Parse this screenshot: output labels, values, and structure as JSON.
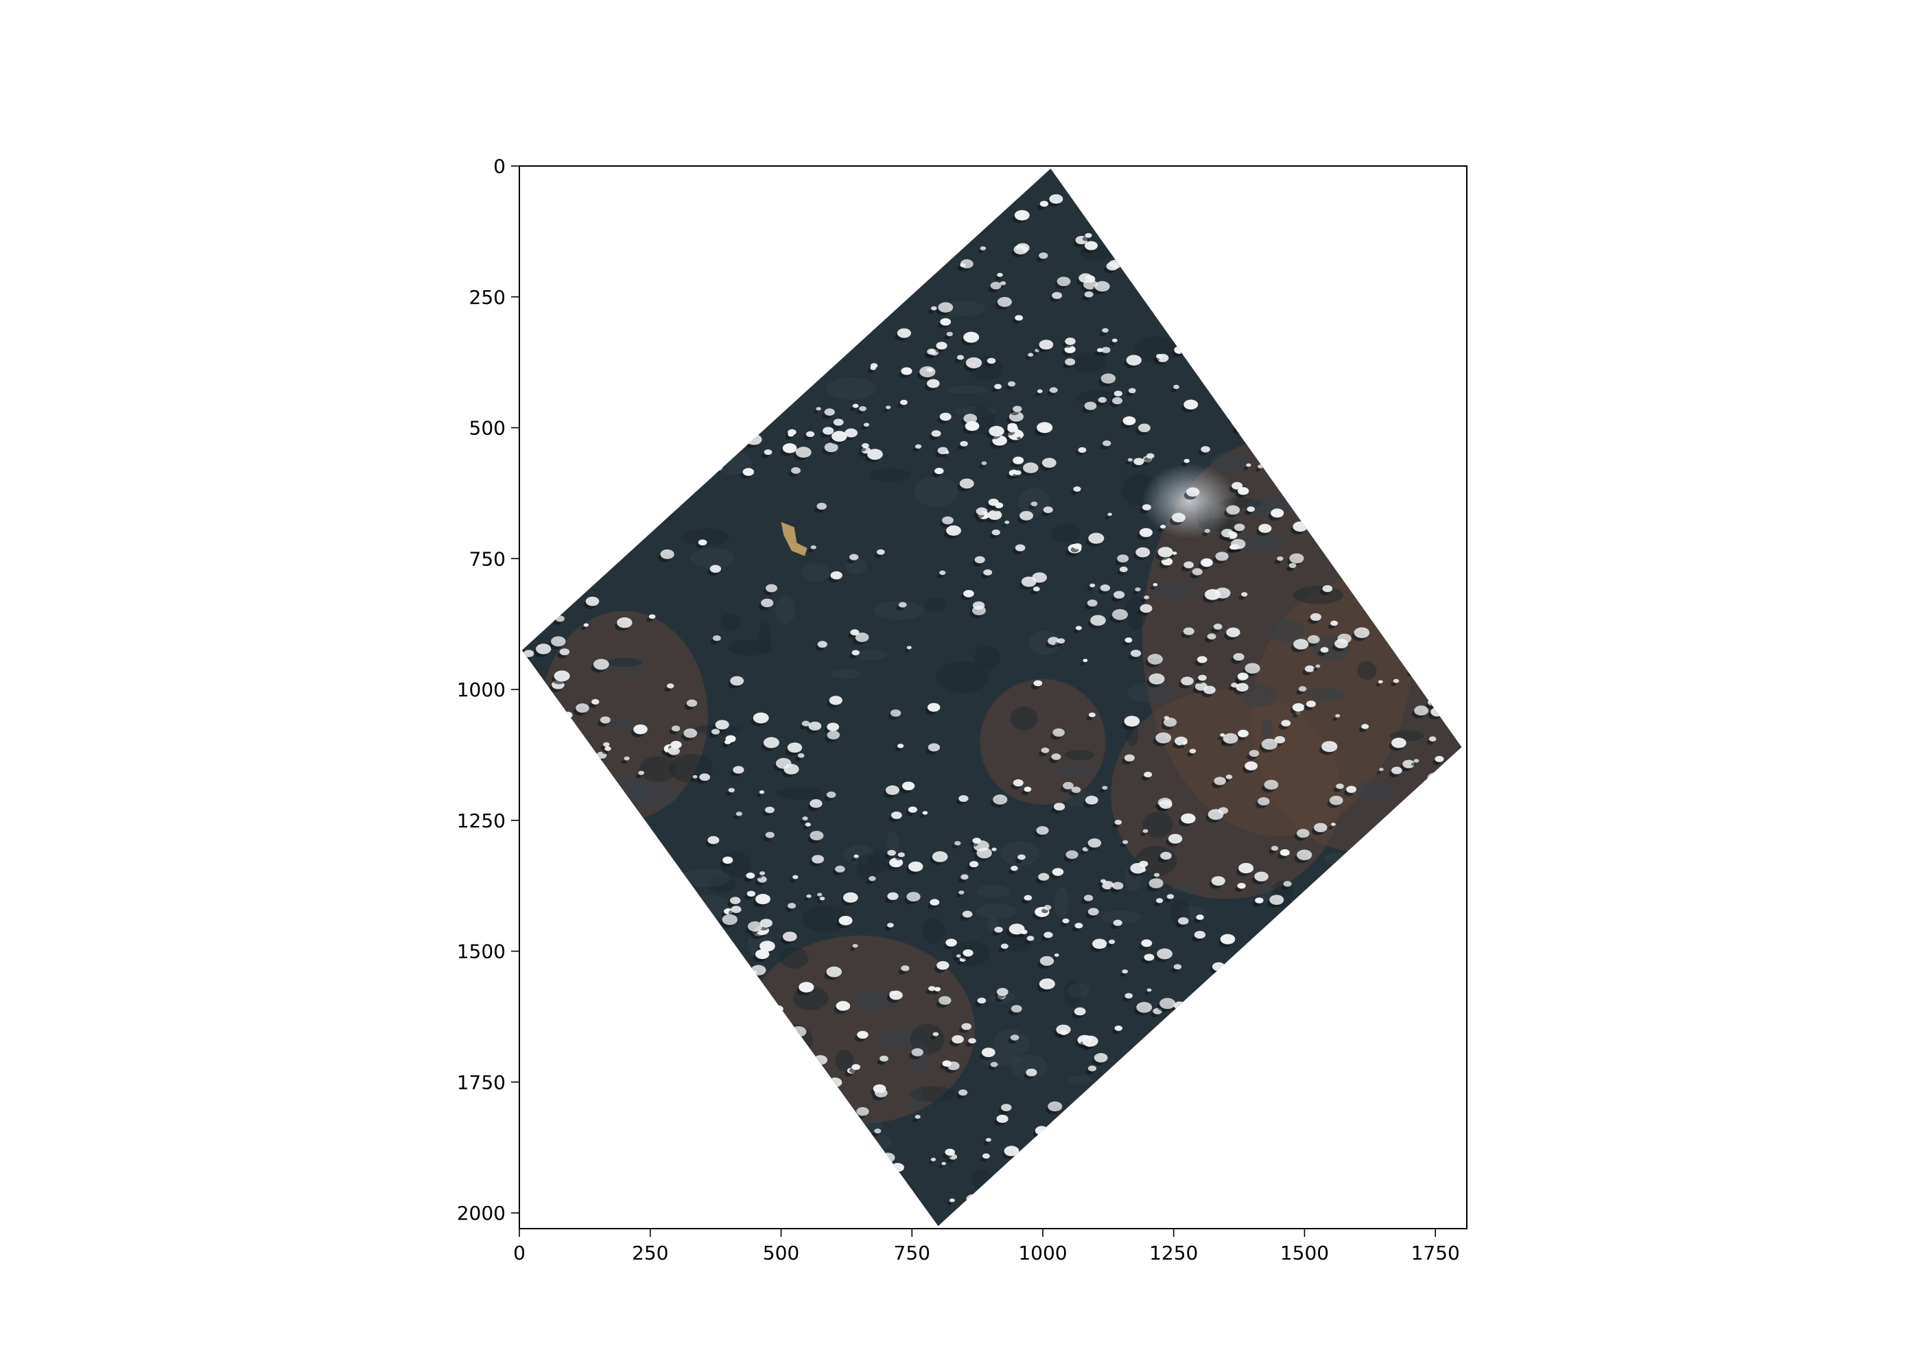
{
  "image": {
    "kind": "satellite-rgb-scene",
    "x_range": [
      0,
      1810
    ],
    "y_range": [
      2030,
      0
    ],
    "x_ticks": [
      0,
      250,
      500,
      750,
      1000,
      1250,
      1500,
      1750
    ],
    "y_ticks": [
      0,
      250,
      500,
      750,
      1000,
      1250,
      1500,
      1750,
      2000
    ],
    "scene_corners": [
      {
        "x": 1015,
        "y": 5
      },
      {
        "x": 1800,
        "y": 1110
      },
      {
        "x": 800,
        "y": 2025
      },
      {
        "x": 5,
        "y": 925
      }
    ],
    "colors": {
      "forest": "#26323a",
      "soil": "#5a4338",
      "cloud": "#f2f4f6",
      "haze": "#b8c4cc",
      "sand": "#b79a62",
      "axes": "#000000",
      "background": "#ffffff"
    }
  }
}
